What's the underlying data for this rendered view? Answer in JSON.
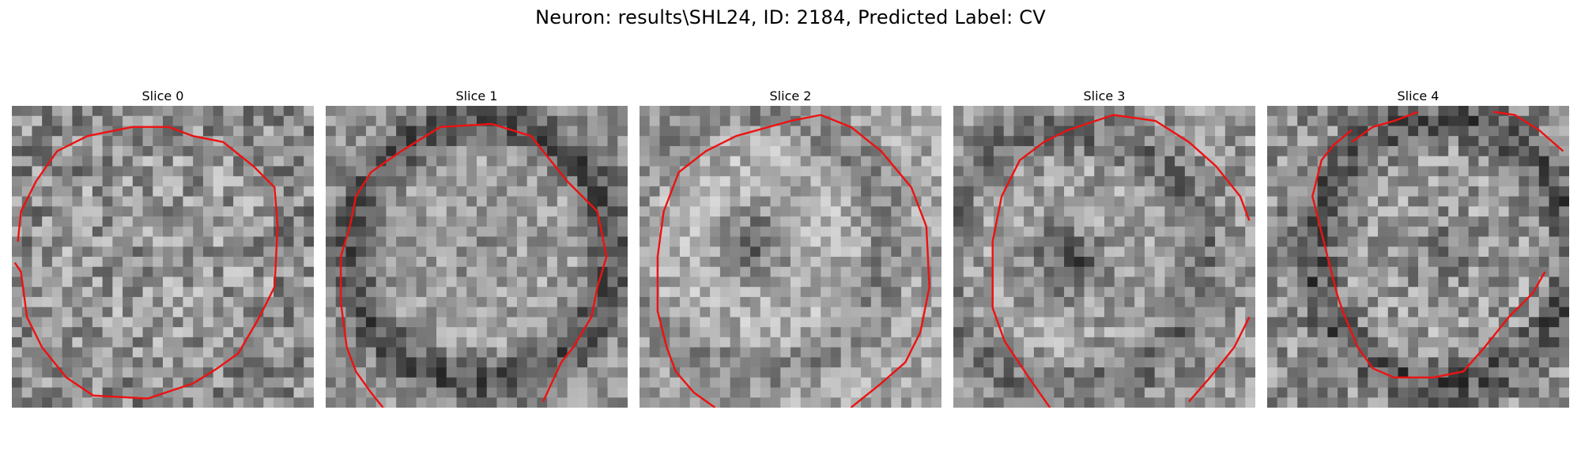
{
  "figure": {
    "title": "Neuron: results\\SHL24, ID: 2184, Predicted Label: CV"
  },
  "panels": [
    {
      "label": "Slice 0"
    },
    {
      "label": "Slice 1"
    },
    {
      "label": "Slice 2"
    },
    {
      "label": "Slice 3"
    },
    {
      "label": "Slice 4"
    }
  ],
  "colors": {
    "contour": "#ee1111",
    "background": "#ffffff"
  }
}
